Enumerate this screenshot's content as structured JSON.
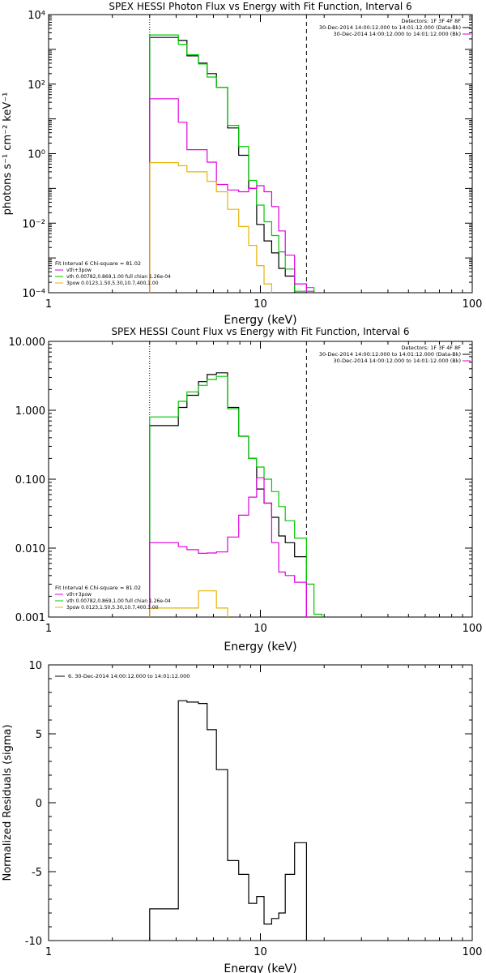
{
  "chart_data": [
    {
      "type": "line",
      "step": true,
      "title": "SPEX HESSI Photon Flux vs Energy with Fit Function, Interval 6",
      "xlabel": "Energy (keV)",
      "ylabel": "photons s⁻¹ cm⁻² keV⁻¹",
      "xscale": "log",
      "yscale": "log",
      "xlim": [
        1,
        100
      ],
      "ylim": [
        0.0001,
        10000
      ],
      "x_ticks": [
        "1",
        "10",
        "100"
      ],
      "y_ticks": [
        "10⁻⁴",
        "10⁻²",
        "10⁰",
        "10²",
        "10⁴"
      ],
      "legend_top": [
        "Detectors: 1F 3F 4F 8F",
        "30-Dec-2014 14:00:12.000 to 14:01:12.000 (Data-Bk)",
        "30-Dec-2014 14:00:12.000 to 14:01:12.000 (Bk)"
      ],
      "legend_bottom": [
        "Fit Interval 6   Chi-square = 81.02",
        "vth+3pow",
        "vth 0.00782,0.869,1.00  full chian 1.26e-04",
        "3pow 0.0123,1.50,5.30,10.7,400,1.00"
      ],
      "vlines": [
        {
          "x": 3.0,
          "style": "dotted"
        },
        {
          "x": 16.5,
          "style": "dashed"
        }
      ],
      "series": [
        {
          "name": "Data-Bk",
          "color": "#000000",
          "edges": [
            3.0,
            4.1,
            4.5,
            5.1,
            5.6,
            6.2,
            7.0,
            7.9,
            8.8,
            9.6,
            10.4,
            11.3,
            12.2,
            13.1,
            14.5,
            16.5
          ],
          "values": [
            2200,
            1800,
            650,
            400,
            200,
            80,
            5.5,
            0.9,
            0.1,
            0.0092,
            0.0031,
            0.0014,
            0.0005,
            0.0003,
            0.0001
          ]
        },
        {
          "name": "vth+3pow",
          "color": "#00c800",
          "edges": [
            3.0,
            4.1,
            4.5,
            5.1,
            5.6,
            6.2,
            7.0,
            7.9,
            8.8,
            9.6,
            10.4,
            11.3,
            12.2,
            13.1,
            14.5,
            16.5,
            17.9
          ],
          "values": [
            2600,
            1400,
            700,
            380,
            160,
            80,
            6.5,
            1.6,
            0.17,
            0.033,
            0.011,
            0.0044,
            0.0015,
            0.00048,
            0.00011,
            0.00014
          ]
        },
        {
          "name": "vth",
          "color": "#e000e0",
          "edges": [
            3.0,
            4.1,
            4.5,
            5.1,
            5.6,
            6.2,
            7.0,
            7.9,
            8.8,
            9.6,
            10.4,
            11.3,
            12.2,
            13.1,
            14.5,
            16.5,
            17.9
          ],
          "values": [
            38,
            8.0,
            1.3,
            1.3,
            0.57,
            0.13,
            0.09,
            0.08,
            0.1,
            0.12,
            0.08,
            0.03,
            0.006,
            0.0012,
            0.00018,
            0.00011
          ]
        },
        {
          "name": "3pow",
          "color": "#e6b400",
          "edges": [
            3.0,
            4.1,
            4.5,
            5.1,
            5.6,
            6.2,
            7.0,
            7.9,
            8.8,
            9.6,
            10.4,
            11.3
          ],
          "values": [
            0.55,
            0.45,
            0.3,
            0.3,
            0.16,
            0.08,
            0.025,
            0.008,
            0.0023,
            0.0006,
            0.00018
          ]
        }
      ]
    },
    {
      "type": "line",
      "step": true,
      "title": "SPEX HESSI Count Flux vs Energy with Fit Function, Interval 6",
      "xlabel": "Energy (keV)",
      "ylabel": "",
      "xscale": "log",
      "yscale": "log",
      "xlim": [
        1,
        100
      ],
      "ylim": [
        0.001,
        10
      ],
      "x_ticks": [
        "1",
        "10",
        "100"
      ],
      "y_ticks": [
        "0.001",
        "0.010",
        "0.100",
        "1.000",
        "10.000"
      ],
      "legend_top": [
        "Detectors: 1F 3F 4F 8F",
        "30-Dec-2014 14:00:12.000 to 14:01:12.000 (Data-Bk)",
        "30-Dec-2014 14:00:12.000 to 14:01:12.000 (Bk)"
      ],
      "legend_bottom": [
        "Fit Interval 6   Chi-square = 81.02",
        "vth+3pow",
        "vth 0.00782,0.869,1.00  full chian 1.26e-04",
        "3pow 0.0123,1.50,5.30,10.7,400,1.00"
      ],
      "vlines": [
        {
          "x": 3.0,
          "style": "dotted"
        },
        {
          "x": 16.5,
          "style": "dashed"
        }
      ],
      "series": [
        {
          "name": "Data-Bk",
          "color": "#000000",
          "edges": [
            3.0,
            4.1,
            4.5,
            5.1,
            5.6,
            6.2,
            7.0,
            7.9,
            8.8,
            9.6,
            10.4,
            11.3,
            12.2,
            13.1,
            14.5,
            16.5
          ],
          "values": [
            0.6,
            1.1,
            1.65,
            2.6,
            3.3,
            3.5,
            1.1,
            0.42,
            0.2,
            0.072,
            0.045,
            0.028,
            0.015,
            0.012,
            0.0075
          ]
        },
        {
          "name": "vth+3pow",
          "color": "#00c800",
          "edges": [
            3.0,
            4.1,
            4.5,
            5.1,
            5.6,
            6.2,
            7.0,
            7.9,
            8.8,
            9.6,
            10.4,
            11.3,
            12.2,
            13.1,
            14.5,
            16.5,
            17.9,
            19.5
          ],
          "values": [
            0.8,
            1.35,
            1.85,
            2.3,
            2.8,
            3.1,
            1.05,
            0.42,
            0.2,
            0.15,
            0.1,
            0.066,
            0.04,
            0.025,
            0.014,
            0.003,
            0.0011
          ]
        },
        {
          "name": "vth",
          "color": "#e000e0",
          "edges": [
            3.0,
            4.1,
            4.5,
            5.1,
            5.6,
            6.2,
            7.0,
            7.9,
            8.8,
            9.6,
            10.4,
            11.3,
            12.2,
            13.1,
            14.5,
            16.5
          ],
          "values": [
            0.012,
            0.0105,
            0.0095,
            0.0084,
            0.0085,
            0.0088,
            0.0145,
            0.03,
            0.055,
            0.105,
            0.045,
            0.012,
            0.0045,
            0.004,
            0.0032
          ]
        },
        {
          "name": "3pow",
          "color": "#e6b400",
          "edges": [
            3.0,
            4.1,
            4.5,
            5.1,
            5.6,
            6.2,
            7.0
          ],
          "values": [
            0.00135,
            0.00135,
            0.00135,
            0.0024,
            0.0024,
            0.00135
          ]
        }
      ]
    },
    {
      "type": "line",
      "step": true,
      "title": "",
      "xlabel": "Energy (keV)",
      "ylabel": "Normalized Residuals (sigma)",
      "xscale": "log",
      "yscale": "linear",
      "xlim": [
        1,
        100
      ],
      "ylim": [
        -10,
        10
      ],
      "x_ticks": [
        "1",
        "10",
        "100"
      ],
      "y_ticks": [
        "-10",
        "-5",
        "0",
        "5",
        "10"
      ],
      "legend_top": [
        "6. 30-Dec-2014 14:00:12.000 to 14:01:12.000"
      ],
      "series": [
        {
          "name": "6. 30-Dec-2014 14:00:12.000 to 14:01:12.000",
          "color": "#000000",
          "edges": [
            3.0,
            4.1,
            4.5,
            5.1,
            5.6,
            6.2,
            7.0,
            7.9,
            8.8,
            9.6,
            10.4,
            11.3,
            12.2,
            13.1,
            14.5,
            16.5
          ],
          "values": [
            -7.7,
            7.4,
            7.3,
            7.2,
            5.3,
            2.4,
            -4.2,
            -5.2,
            -7.3,
            -6.8,
            -8.8,
            -8.4,
            -8.0,
            -5.2,
            -2.9
          ]
        }
      ]
    }
  ]
}
